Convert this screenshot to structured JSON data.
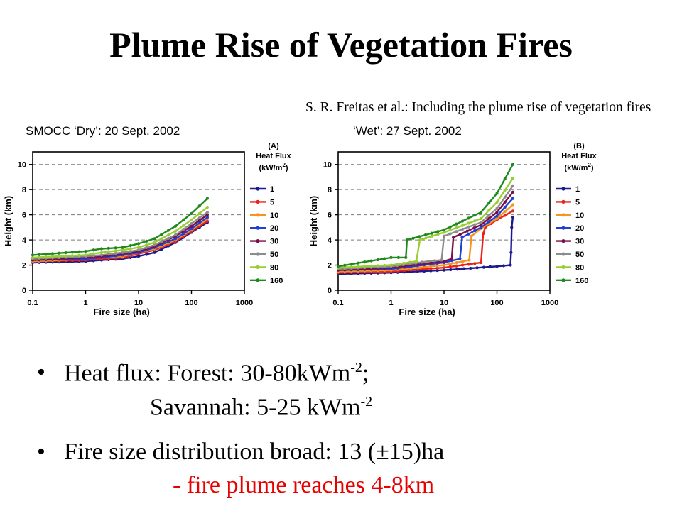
{
  "title": "Plume Rise of Vegetation Fires",
  "citation": "S. R. Freitas et al.: Including the plume rise of vegetation fires",
  "panel_captions": {
    "left": "SMOCC ‘Dry’: 20 Sept. 2002",
    "right": "‘Wet’: 27 Sept. 2002"
  },
  "bullets": {
    "heat_flux_prefix": "Heat flux: Forest: 30-80kWm",
    "heat_flux_exp": "-2",
    "heat_flux_suffix": ";",
    "savannah_prefix": "Savannah: 5-25 kWm",
    "savannah_exp": "-2",
    "fire_size": "Fire size distribution broad: 13 (±15)ha",
    "plume_note": "- fire plume reaches 4-8km"
  },
  "chart_data": [
    {
      "type": "line",
      "panel_label": "(A)",
      "xlabel": "Fire size (ha)",
      "ylabel": "Height (km)",
      "xscale": "log",
      "xlim": [
        0.1,
        1000
      ],
      "ylim": [
        0,
        11
      ],
      "xticks": [
        "0.1",
        "1",
        "10",
        "100",
        "1000"
      ],
      "yticks": [
        "0",
        "2",
        "4",
        "6",
        "8",
        "10"
      ],
      "grid": "horizontal dashed at y ticks",
      "legend_title": "Heat Flux",
      "legend_units": "(kW/m",
      "legend_units_exp": "2",
      "legend_units_close": ")",
      "legend_placement": "right",
      "x": [
        0.1,
        1,
        2,
        5,
        10,
        20,
        50,
        100,
        200
      ],
      "series": [
        {
          "name": "1",
          "color": "#1a1a8c",
          "values": [
            2.2,
            2.3,
            2.4,
            2.5,
            2.7,
            3.0,
            3.8,
            4.6,
            5.4
          ]
        },
        {
          "name": "5",
          "color": "#e8231b",
          "values": [
            2.3,
            2.4,
            2.5,
            2.6,
            2.9,
            3.2,
            3.9,
            4.7,
            5.5
          ]
        },
        {
          "name": "10",
          "color": "#f5951f",
          "values": [
            2.3,
            2.5,
            2.6,
            2.7,
            3.0,
            3.3,
            4.0,
            4.8,
            5.7
          ]
        },
        {
          "name": "20",
          "color": "#1f3fd6",
          "values": [
            2.4,
            2.5,
            2.6,
            2.8,
            3.0,
            3.4,
            4.1,
            4.9,
            5.8
          ]
        },
        {
          "name": "30",
          "color": "#7a0f4a",
          "values": [
            2.4,
            2.6,
            2.7,
            2.9,
            3.1,
            3.5,
            4.3,
            5.1,
            6.0
          ]
        },
        {
          "name": "50",
          "color": "#8c8c8c",
          "values": [
            2.5,
            2.7,
            2.8,
            3.0,
            3.2,
            3.6,
            4.4,
            5.3,
            6.2
          ]
        },
        {
          "name": "80",
          "color": "#9acd32",
          "values": [
            2.6,
            2.8,
            3.0,
            3.2,
            3.4,
            3.8,
            4.7,
            5.6,
            6.6
          ]
        },
        {
          "name": "160",
          "color": "#1e8a1e",
          "values": [
            2.8,
            3.1,
            3.3,
            3.4,
            3.7,
            4.1,
            5.1,
            6.1,
            7.3
          ]
        }
      ]
    },
    {
      "type": "line",
      "panel_label": "(B)",
      "xlabel": "Fire size (ha)",
      "ylabel": "Height (km)",
      "xscale": "log",
      "xlim": [
        0.1,
        1000
      ],
      "ylim": [
        0,
        11
      ],
      "xticks": [
        "0.1",
        "1",
        "10",
        "100",
        "1000"
      ],
      "yticks": [
        "0",
        "2",
        "4",
        "6",
        "8",
        "10"
      ],
      "grid": "horizontal dashed at y ticks",
      "legend_title": "Heat Flux",
      "legend_units": "(kW/m",
      "legend_units_exp": "2",
      "legend_units_close": ")",
      "legend_placement": "right",
      "series": [
        {
          "name": "1",
          "color": "#1a1a8c",
          "points": [
            [
              0.1,
              1.3
            ],
            [
              1,
              1.4
            ],
            [
              10,
              1.6
            ],
            [
              100,
              1.9
            ],
            [
              180,
              2.0
            ],
            [
              185,
              3.0
            ],
            [
              190,
              5.0
            ],
            [
              200,
              5.8
            ]
          ]
        },
        {
          "name": "5",
          "color": "#e8231b",
          "points": [
            [
              0.1,
              1.4
            ],
            [
              1,
              1.5
            ],
            [
              10,
              1.8
            ],
            [
              50,
              2.2
            ],
            [
              55,
              4.5
            ],
            [
              60,
              5.0
            ],
            [
              100,
              5.6
            ],
            [
              200,
              6.3
            ]
          ]
        },
        {
          "name": "10",
          "color": "#f5951f",
          "points": [
            [
              0.1,
              1.5
            ],
            [
              1,
              1.6
            ],
            [
              10,
              2.0
            ],
            [
              30,
              2.4
            ],
            [
              33,
              4.3
            ],
            [
              50,
              4.9
            ],
            [
              100,
              5.7
            ],
            [
              200,
              6.8
            ]
          ]
        },
        {
          "name": "20",
          "color": "#1f3fd6",
          "points": [
            [
              0.1,
              1.6
            ],
            [
              1,
              1.7
            ],
            [
              10,
              2.2
            ],
            [
              20,
              2.5
            ],
            [
              22,
              4.2
            ],
            [
              50,
              5.0
            ],
            [
              100,
              5.9
            ],
            [
              200,
              7.3
            ]
          ]
        },
        {
          "name": "30",
          "color": "#7a0f4a",
          "points": [
            [
              0.1,
              1.6
            ],
            [
              1,
              1.8
            ],
            [
              10,
              2.3
            ],
            [
              14,
              2.5
            ],
            [
              15,
              4.2
            ],
            [
              50,
              5.2
            ],
            [
              100,
              6.2
            ],
            [
              200,
              7.8
            ]
          ]
        },
        {
          "name": "50",
          "color": "#8c8c8c",
          "points": [
            [
              0.1,
              1.7
            ],
            [
              1,
              1.9
            ],
            [
              5,
              2.3
            ],
            [
              9,
              2.4
            ],
            [
              10,
              4.3
            ],
            [
              50,
              5.4
            ],
            [
              100,
              6.5
            ],
            [
              200,
              8.3
            ]
          ]
        },
        {
          "name": "80",
          "color": "#9acd32",
          "points": [
            [
              0.1,
              1.8
            ],
            [
              1,
              2.0
            ],
            [
              3,
              2.3
            ],
            [
              3.5,
              4.0
            ],
            [
              10,
              4.6
            ],
            [
              50,
              5.7
            ],
            [
              100,
              7.0
            ],
            [
              200,
              8.9
            ]
          ]
        },
        {
          "name": "160",
          "color": "#1e8a1e",
          "points": [
            [
              0.1,
              1.9
            ],
            [
              1,
              2.6
            ],
            [
              1.9,
              2.6
            ],
            [
              2,
              4.0
            ],
            [
              10,
              4.8
            ],
            [
              50,
              6.2
            ],
            [
              100,
              7.7
            ],
            [
              200,
              10.0
            ]
          ]
        }
      ]
    }
  ]
}
